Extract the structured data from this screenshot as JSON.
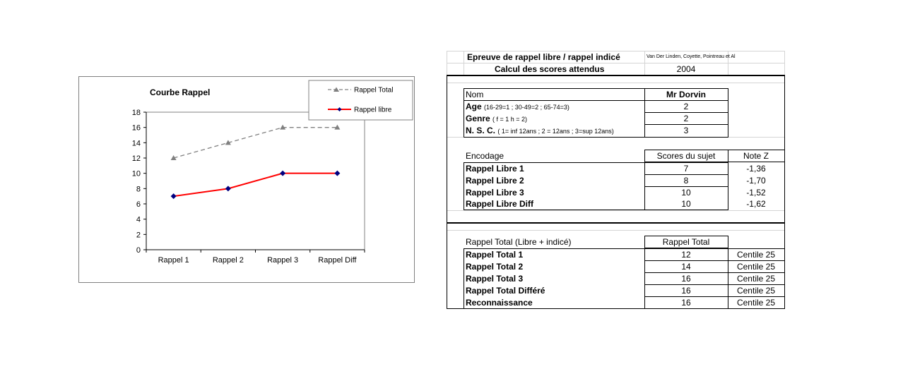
{
  "chart_data": {
    "type": "line",
    "title": "Courbe Rappel",
    "categories": [
      "Rappel 1",
      "Rappel 2",
      "Rappel 3",
      "Rappel Diff"
    ],
    "series": [
      {
        "name": "Rappel Total",
        "values": [
          12,
          14,
          16,
          16
        ],
        "color": "#808080",
        "style": "dashed",
        "marker": "triangle"
      },
      {
        "name": "Rappel libre",
        "values": [
          7,
          8,
          10,
          10
        ],
        "color": "#ff0000",
        "style": "solid",
        "marker": "diamond",
        "marker_color": "#000080"
      }
    ],
    "yticks": [
      0,
      2,
      4,
      6,
      8,
      10,
      12,
      14,
      16,
      18
    ],
    "ylim": [
      0,
      18
    ],
    "grid": false,
    "legend_position": "top-right"
  },
  "sheet": {
    "header": {
      "title": "Epreuve de rappel libre / rappel indicé",
      "authors": "Van Der Linden, Coyette, Pointreau  et Al",
      "subtitle": "Calcul des scores attendus",
      "year": "2004"
    },
    "identity": {
      "name_label": "Nom",
      "name_value": "Mr Dorvin",
      "age_label": "Age",
      "age_hint": "(16-29=1 ; 30-49=2 ; 65-74=3)",
      "age_value": "2",
      "genre_label": "Genre",
      "genre_hint": "( f = 1 h = 2)",
      "genre_value": "2",
      "nsc_label": "N. S. C.",
      "nsc_hint": "( 1= inf 12ans ; 2 = 12ans ; 3=sup 12ans)",
      "nsc_value": "3"
    },
    "encodage": {
      "label": "Encodage",
      "col_scores": "Scores du sujet",
      "col_z": "Note Z",
      "rows": [
        {
          "label": "Rappel Libre 1",
          "score": "7",
          "z": "-1,36"
        },
        {
          "label": "Rappel Libre 2",
          "score": "8",
          "z": "-1,70"
        },
        {
          "label": "Rappel Libre 3",
          "score": "10",
          "z": "-1,52"
        },
        {
          "label": "Rappel Libre Diff",
          "score": "10",
          "z": "-1,62"
        }
      ]
    },
    "total": {
      "label": "Rappel Total (Libre + indicé)",
      "col_total": "Rappel Total",
      "rows": [
        {
          "label": "Rappel Total 1",
          "value": "12",
          "centile": "Centile 25"
        },
        {
          "label": "Rappel Total 2",
          "value": "14",
          "centile": "Centile 25"
        },
        {
          "label": "Rappel Total 3",
          "value": "16",
          "centile": "Centile 25"
        },
        {
          "label": "Rappel Total Différé",
          "value": "16",
          "centile": "Centile 25"
        },
        {
          "label": "Reconnaissance",
          "value": "16",
          "centile": "Centile 25"
        }
      ]
    }
  }
}
